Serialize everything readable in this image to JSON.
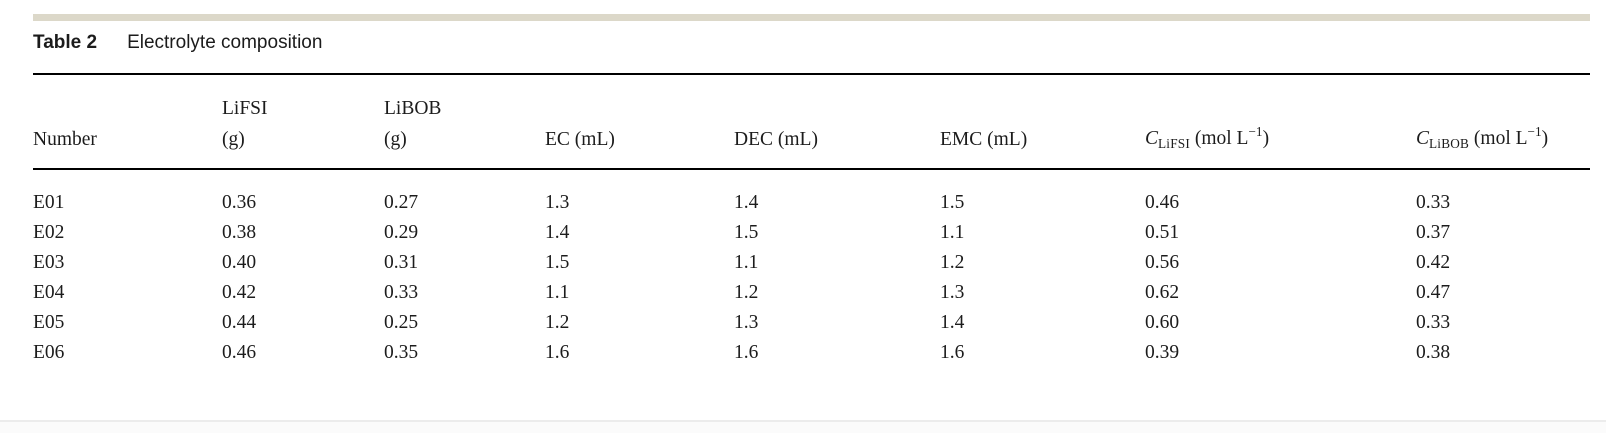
{
  "caption": {
    "label": "Table 2",
    "title": "Electrolyte composition"
  },
  "table": {
    "headers": {
      "number": "Number",
      "lifsi_line1": "LiFSI",
      "lifsi_line2": "(g)",
      "libob_line1": "LiBOB",
      "libob_line2": "(g)",
      "ec": "EC (mL)",
      "dec": "DEC (mL)",
      "emc": "EMC (mL)",
      "c_lifsi": {
        "symbol": "C",
        "sub": "LiFSI",
        "unit_pre": " (mol L",
        "sup": "−1",
        "unit_post": ")"
      },
      "c_libob": {
        "symbol": "C",
        "sub": "LiBOB",
        "unit_pre": " (mol L",
        "sup": "−1",
        "unit_post": ")"
      }
    },
    "rows": [
      [
        "E01",
        "0.36",
        "0.27",
        "1.3",
        "1.4",
        "1.5",
        "0.46",
        "0.33"
      ],
      [
        "E02",
        "0.38",
        "0.29",
        "1.4",
        "1.5",
        "1.1",
        "0.51",
        "0.37"
      ],
      [
        "E03",
        "0.40",
        "0.31",
        "1.5",
        "1.1",
        "1.2",
        "0.56",
        "0.42"
      ],
      [
        "E04",
        "0.42",
        "0.33",
        "1.1",
        "1.2",
        "1.3",
        "0.62",
        "0.47"
      ],
      [
        "E05",
        "0.44",
        "0.25",
        "1.2",
        "1.3",
        "1.4",
        "0.60",
        "0.33"
      ],
      [
        "E06",
        "0.46",
        "0.35",
        "1.6",
        "1.6",
        "1.6",
        "0.39",
        "0.38"
      ]
    ]
  },
  "colors": {
    "accent_bar": "#dcd8c9",
    "rule": "#000000",
    "text": "#1c1c1c",
    "footer_line": "#ececec"
  }
}
